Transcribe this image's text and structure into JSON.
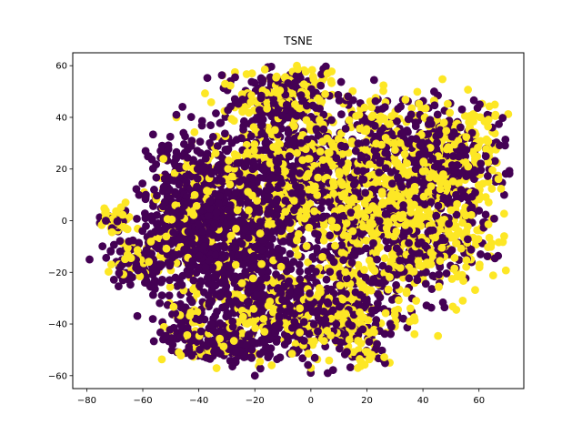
{
  "chart_data": {
    "type": "scatter",
    "title": "TSNE",
    "xlabel": "",
    "ylabel": "",
    "xlim": [
      -85,
      76
    ],
    "ylim": [
      -65,
      65
    ],
    "xticks": [
      -80,
      -60,
      -40,
      -20,
      0,
      20,
      40,
      60
    ],
    "yticks": [
      -60,
      -40,
      -20,
      0,
      20,
      40,
      60
    ],
    "grid": false,
    "colors": {
      "class_0": "#440154",
      "class_1": "#fde725",
      "spine": "#000000"
    },
    "clusters": [
      {
        "cx": -30,
        "cy": -5,
        "sx": 13,
        "sy": 18,
        "n": 900,
        "yellow_frac": 0.16
      },
      {
        "cx": -45,
        "cy": 5,
        "sx": 8,
        "sy": 12,
        "n": 300,
        "yellow_frac": 0.15
      },
      {
        "cx": -8,
        "cy": 20,
        "sx": 13,
        "sy": 14,
        "n": 600,
        "yellow_frac": 0.35
      },
      {
        "cx": -10,
        "cy": 48,
        "sx": 10,
        "sy": 6,
        "n": 220,
        "yellow_frac": 0.45
      },
      {
        "cx": 15,
        "cy": 5,
        "sx": 14,
        "sy": 16,
        "n": 650,
        "yellow_frac": 0.6
      },
      {
        "cx": 48,
        "cy": 25,
        "sx": 10,
        "sy": 11,
        "n": 500,
        "yellow_frac": 0.45
      },
      {
        "cx": 40,
        "cy": -5,
        "sx": 12,
        "sy": 13,
        "n": 450,
        "yellow_frac": 0.6
      },
      {
        "cx": -8,
        "cy": -35,
        "sx": 14,
        "sy": 9,
        "n": 420,
        "yellow_frac": 0.35
      },
      {
        "cx": 15,
        "cy": -35,
        "sx": 10,
        "sy": 9,
        "n": 250,
        "yellow_frac": 0.5
      },
      {
        "cx": -62,
        "cy": -15,
        "sx": 5,
        "sy": 5,
        "n": 120,
        "yellow_frac": 0.25
      },
      {
        "cx": -70,
        "cy": 0,
        "sx": 3,
        "sy": 3,
        "n": 60,
        "yellow_frac": 0.6
      },
      {
        "cx": -45,
        "cy": -40,
        "sx": 4,
        "sy": 4,
        "n": 80,
        "yellow_frac": 0.35
      },
      {
        "cx": 20,
        "cy": -52,
        "sx": 4,
        "sy": 2,
        "n": 25,
        "yellow_frac": 0.6
      },
      {
        "cx": -30,
        "cy": -48,
        "sx": 8,
        "sy": 4,
        "n": 160,
        "yellow_frac": 0.2
      },
      {
        "cx": 25,
        "cy": 35,
        "sx": 6,
        "sy": 7,
        "n": 140,
        "yellow_frac": 0.5
      }
    ],
    "outliers": [
      {
        "x": -48,
        "y": 41,
        "c": 0
      },
      {
        "x": -48,
        "y": 40,
        "c": 1
      },
      {
        "x": -59,
        "y": 27,
        "c": 0
      },
      {
        "x": -58,
        "y": 25,
        "c": 0
      },
      {
        "x": -79,
        "y": -15,
        "c": 0
      },
      {
        "x": 44,
        "y": 50,
        "c": 0
      },
      {
        "x": 54,
        "y": -21,
        "c": 1
      },
      {
        "x": 26,
        "y": -54,
        "c": 0
      },
      {
        "x": 30,
        "y": -41,
        "c": 1
      },
      {
        "x": -14,
        "y": -56,
        "c": 1
      },
      {
        "x": 0,
        "y": -57,
        "c": 1
      },
      {
        "x": 6,
        "y": -59,
        "c": 0
      },
      {
        "x": -20,
        "y": -60,
        "c": 0
      },
      {
        "x": 69,
        "y": -6,
        "c": 1
      },
      {
        "x": 69,
        "y": 10,
        "c": 0
      },
      {
        "x": 13,
        "y": 48,
        "c": 1
      },
      {
        "x": -21,
        "y": 57,
        "c": 1
      },
      {
        "x": -5,
        "y": 60,
        "c": 1
      }
    ]
  }
}
